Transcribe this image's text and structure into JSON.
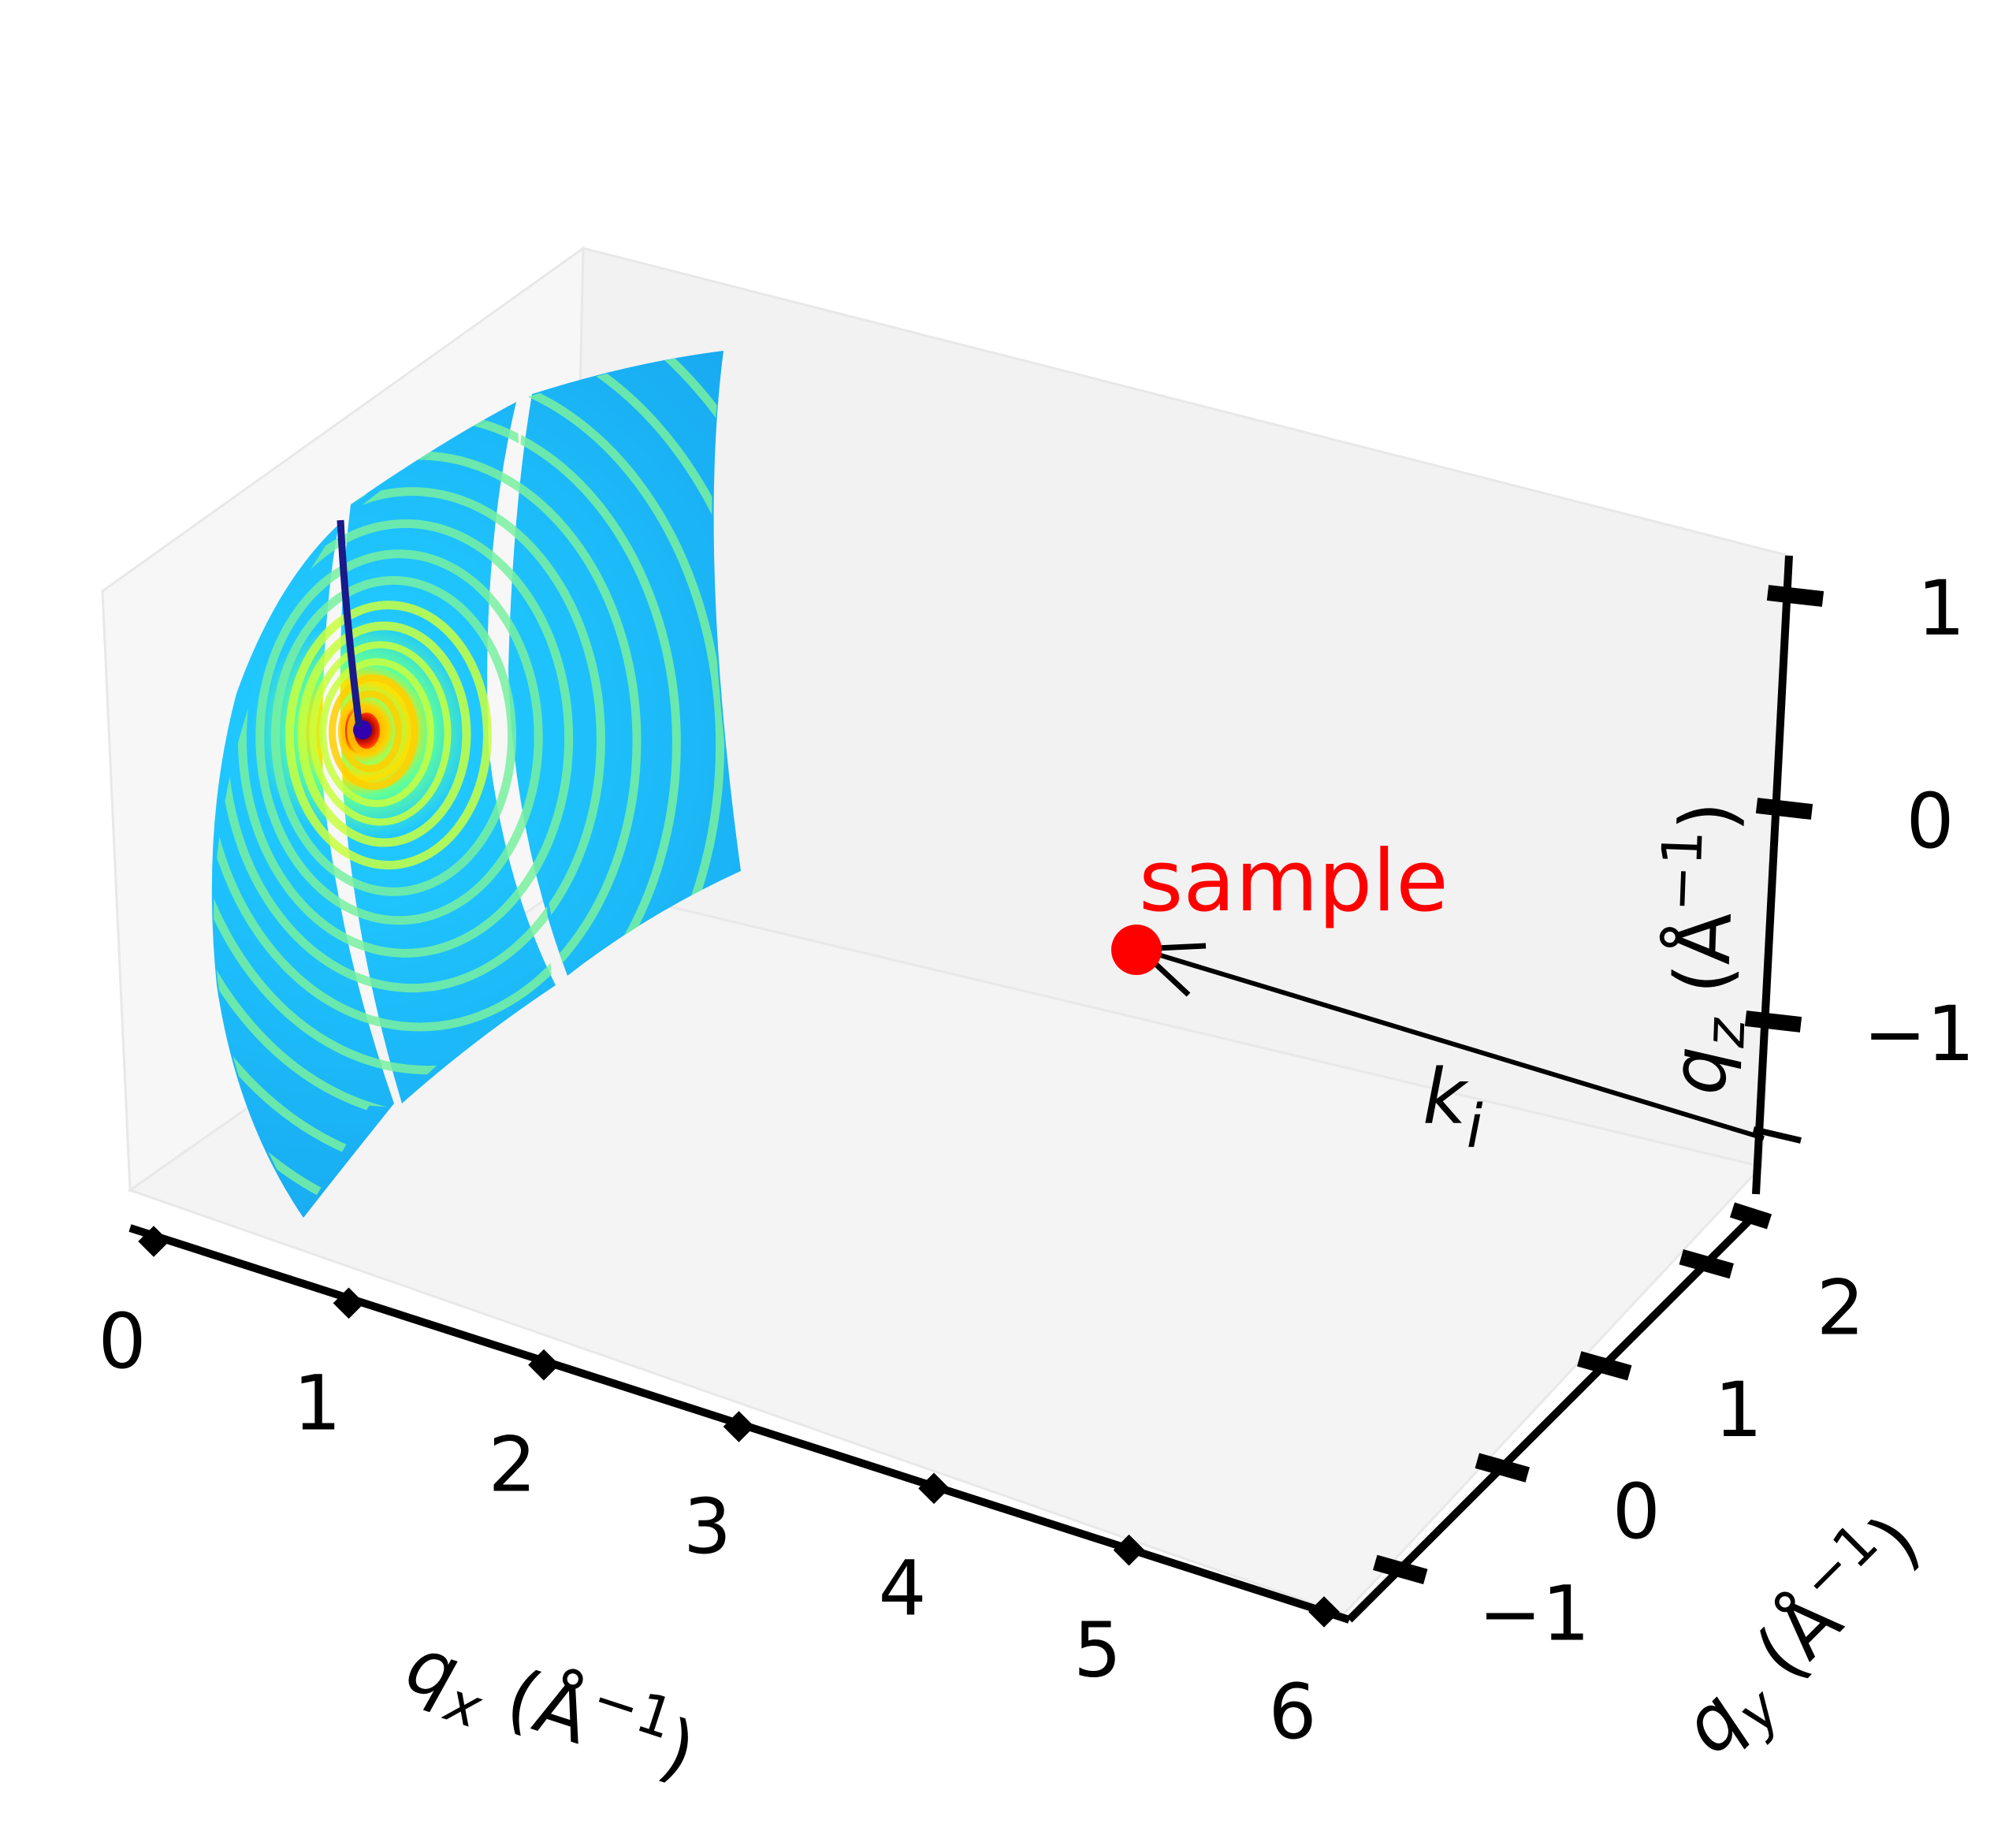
{
  "chart_data": {
    "type": "3d-scatter",
    "x_axis": {
      "label_var": "q",
      "label_sub": "x",
      "label_unit_open": " (Å",
      "label_unit_sup": "−1",
      "label_unit_close": ")",
      "ticks": [
        "0",
        "1",
        "2",
        "3",
        "4",
        "5",
        "6"
      ],
      "range": [
        0,
        6
      ]
    },
    "y_axis": {
      "label_var": "q",
      "label_sub": "y",
      "label_unit_open": " (Å",
      "label_unit_sup": "−1",
      "label_unit_close": ")",
      "ticks": [
        "−1",
        "0",
        "1",
        "2"
      ],
      "range": [
        -1.5,
        2.5
      ]
    },
    "z_axis": {
      "label_var": "q",
      "label_sub": "z",
      "label_unit_open": " (Å",
      "label_unit_sup": "−1",
      "label_unit_close": ")",
      "ticks": [
        "−1",
        "0",
        "1"
      ],
      "range": [
        -1.5,
        1.5
      ]
    },
    "points": [
      {
        "label": "sample",
        "x": 6,
        "y": 0,
        "z": 0,
        "color": "#ff0000"
      }
    ],
    "arrows": [
      {
        "label_var": "k",
        "label_sub": "i",
        "to": "sample",
        "color": "#000000"
      }
    ],
    "detector": {
      "colormap": "jet",
      "panels": 3,
      "pattern": "concentric diffraction rings"
    },
    "grid": false
  }
}
